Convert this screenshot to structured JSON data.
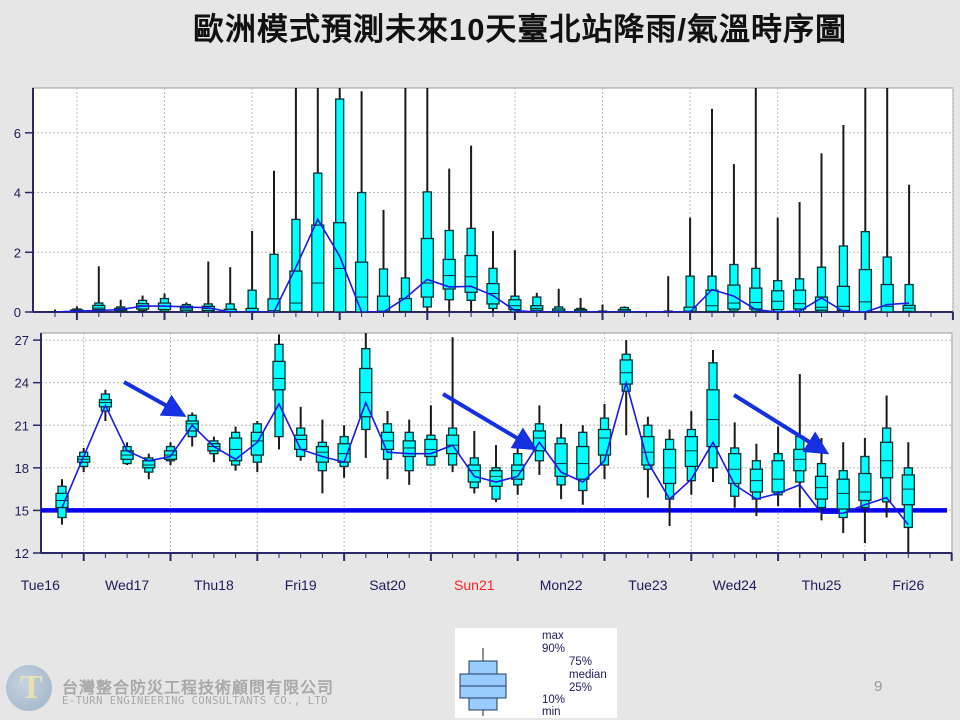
{
  "title": "歐洲模式預測未來10天臺北站降雨/氣溫時序圖",
  "page_number": "9",
  "company": {
    "name_zh": "台灣整合防災工程技術顧問有限公司",
    "name_en": "E-TURN ENGINEERING CONSULTANTS CO., LTD"
  },
  "legend": {
    "max": "max",
    "p90": "90%",
    "p75": "75%",
    "median": "median",
    "p25": "25%",
    "p10": "10%",
    "min": "min"
  },
  "colors": {
    "box_fill": "#00ffff",
    "box_border": "#0b3030",
    "control_line": "#1a1ae6",
    "reference_line": "#0000ee",
    "arrow": "#1530e0",
    "sunday_label": "#ff2020",
    "axis_text": "#1c1c5a",
    "legend_box": "#99ccff"
  },
  "chart_data": [
    {
      "type": "boxplot",
      "title": "",
      "xlabel": "",
      "ylabel": "",
      "ylim": [
        0,
        7.5
      ],
      "yticks": [
        "0",
        "2",
        "4",
        "6"
      ],
      "grid": true,
      "box_fields": [
        "min",
        "p10",
        "p25",
        "median",
        "p75",
        "p90",
        "max"
      ],
      "boxes": [
        [
          0,
          0,
          0,
          0,
          0,
          0,
          0.08
        ],
        [
          0,
          0,
          0,
          0.02,
          0.07,
          0.1,
          0.19
        ],
        [
          0,
          0.03,
          0.08,
          0.13,
          0.22,
          0.3,
          1.53
        ],
        [
          0,
          0.01,
          0.04,
          0.08,
          0.12,
          0.17,
          0.41
        ],
        [
          0,
          0.05,
          0.1,
          0.21,
          0.28,
          0.39,
          0.55
        ],
        [
          0,
          0.02,
          0.08,
          0.2,
          0.3,
          0.45,
          0.62
        ],
        [
          0,
          0,
          0.06,
          0.13,
          0.19,
          0.25,
          0.32
        ],
        [
          0,
          0,
          0.05,
          0.12,
          0.19,
          0.27,
          1.69
        ],
        [
          0,
          0,
          0,
          0.02,
          0.09,
          0.27,
          1.5
        ],
        [
          0,
          0,
          0,
          0.02,
          0.12,
          0.73,
          2.71
        ],
        [
          0,
          0,
          0,
          0.05,
          0.44,
          1.93,
          4.73
        ],
        [
          0,
          0,
          0.02,
          0.3,
          1.37,
          3.1,
          9
        ],
        [
          0,
          0,
          0,
          0.97,
          2.91,
          4.65,
          9
        ],
        [
          0,
          0,
          0,
          1.46,
          2.99,
          7.13,
          9
        ],
        [
          0,
          0,
          0,
          0.5,
          1.67,
          4.0,
          7.39
        ],
        [
          0,
          0,
          0,
          0.03,
          0.53,
          1.44,
          3.42
        ],
        [
          0,
          0,
          0,
          0.02,
          0.45,
          1.14,
          9
        ],
        [
          0,
          0.17,
          0.5,
          0.97,
          2.46,
          4.02,
          9
        ],
        [
          0,
          0.41,
          0.77,
          1.22,
          1.76,
          2.73,
          4.8
        ],
        [
          0,
          0.39,
          0.66,
          1.18,
          1.89,
          2.8,
          5.57
        ],
        [
          0,
          0.12,
          0.27,
          0.62,
          0.95,
          1.46,
          2.71
        ],
        [
          0,
          0,
          0.08,
          0.21,
          0.41,
          0.53,
          2.07
        ],
        [
          0,
          0,
          0.06,
          0.12,
          0.21,
          0.5,
          0.64
        ],
        [
          0,
          0,
          0,
          0.04,
          0.1,
          0.17,
          0.78
        ],
        [
          0,
          0,
          0,
          0.04,
          0.08,
          0.12,
          0.47
        ],
        [
          0,
          0,
          0,
          0,
          0,
          0.03,
          0.25
        ],
        [
          0,
          0,
          0,
          0.03,
          0.08,
          0.15,
          0.19
        ],
        [
          0,
          0,
          0,
          0,
          0,
          0,
          0.03
        ],
        [
          0,
          0,
          0,
          0,
          0,
          0.03,
          1.2
        ],
        [
          0,
          0,
          0,
          0.03,
          0.16,
          1.2,
          3.16
        ],
        [
          0,
          0,
          0.02,
          0.21,
          0.73,
          1.2,
          6.8
        ],
        [
          0,
          0.03,
          0.1,
          0.3,
          0.9,
          1.59,
          4.95
        ],
        [
          0,
          0.02,
          0.1,
          0.32,
          0.8,
          1.46,
          9
        ],
        [
          0,
          0,
          0.08,
          0.36,
          0.71,
          1.05,
          3.16
        ],
        [
          0,
          0,
          0.1,
          0.28,
          0.73,
          1.11,
          3.68
        ],
        [
          0,
          0,
          0.06,
          0.16,
          0.5,
          1.5,
          5.31
        ],
        [
          0,
          0,
          0.05,
          0.19,
          0.86,
          2.21,
          6.26
        ],
        [
          0,
          0,
          0,
          0.34,
          1.42,
          2.69,
          9
        ],
        [
          0,
          0,
          0,
          0.19,
          0.92,
          1.84,
          9
        ],
        [
          0,
          0,
          0.02,
          0.13,
          0.22,
          0.92,
          4.26
        ]
      ],
      "control_line": [
        0,
        0.03,
        0.05,
        0.08,
        0.2,
        0.2,
        0.17,
        0.14,
        0,
        0,
        0,
        1.5,
        3.1,
        1.87,
        0,
        0,
        0.47,
        1.09,
        0.84,
        0.86,
        0.55,
        0.05,
        0,
        0,
        0,
        0,
        0,
        0,
        0,
        0,
        0.75,
        0.53,
        0.08,
        0,
        0.03,
        0.47,
        0.02,
        0,
        0.25,
        0.3
      ]
    },
    {
      "type": "boxplot",
      "title": "",
      "xlabel": "",
      "ylabel": "",
      "ylim": [
        12,
        27.5
      ],
      "yticks": [
        "12",
        "15",
        "18",
        "21",
        "24",
        "27"
      ],
      "grid": true,
      "x_tick_labels": [
        "Tue16",
        "Wed17",
        "Thu18",
        "Fri19",
        "Sat20",
        "Sun21",
        "Mon22",
        "Tue23",
        "Wed24",
        "Thu25",
        "Fri26"
      ],
      "reference_line": 15,
      "box_fields": [
        "min",
        "p10",
        "p25",
        "median",
        "p75",
        "p90",
        "max"
      ],
      "boxes": [
        [
          14.0,
          14.5,
          15.2,
          15.7,
          16.2,
          16.7,
          17.2
        ],
        [
          17.7,
          18.1,
          18.4,
          18.6,
          18.8,
          19.1,
          19.4
        ],
        [
          21.3,
          22.0,
          22.3,
          22.6,
          22.8,
          23.2,
          23.5
        ],
        [
          18.2,
          18.3,
          18.6,
          18.9,
          19.2,
          19.5,
          19.8
        ],
        [
          17.2,
          17.7,
          18.0,
          18.2,
          18.5,
          18.7,
          19.0
        ],
        [
          18.2,
          18.5,
          18.6,
          18.9,
          19.2,
          19.5,
          19.8
        ],
        [
          19.5,
          20.2,
          20.6,
          21.1,
          21.3,
          21.7,
          21.9
        ],
        [
          18.4,
          19.0,
          19.2,
          19.5,
          19.7,
          19.9,
          20.2
        ],
        [
          17.8,
          18.2,
          18.5,
          19.3,
          20.1,
          20.5,
          20.9
        ],
        [
          17.7,
          18.4,
          18.9,
          19.9,
          20.5,
          21.1,
          21.3
        ],
        [
          19.3,
          20.2,
          23.5,
          24.3,
          25.5,
          26.7,
          27.4
        ],
        [
          18.5,
          18.8,
          19.3,
          20.0,
          20.3,
          20.8,
          22.3
        ],
        [
          16.2,
          17.8,
          18.4,
          19.1,
          19.5,
          19.8,
          21.4
        ],
        [
          17.3,
          18.1,
          18.4,
          19.0,
          19.7,
          20.2,
          21.0
        ],
        [
          18.7,
          20.7,
          21.6,
          23.3,
          25.0,
          26.4,
          27.5
        ],
        [
          17.2,
          18.6,
          19.3,
          19.9,
          20.5,
          21.1,
          22.0
        ],
        [
          16.8,
          17.8,
          18.8,
          19.4,
          19.9,
          20.5,
          21.4
        ],
        [
          18.2,
          18.2,
          18.8,
          19.3,
          20.0,
          20.3,
          22.4
        ],
        [
          17.7,
          18.2,
          19.0,
          19.6,
          20.3,
          20.8,
          27.2
        ],
        [
          16.2,
          16.6,
          17.0,
          17.8,
          18.2,
          18.7,
          20.6
        ],
        [
          15.6,
          15.8,
          16.7,
          17.4,
          17.8,
          18.0,
          19.6
        ],
        [
          16.1,
          16.8,
          17.2,
          17.8,
          18.2,
          19.0,
          19.8
        ],
        [
          17.5,
          18.5,
          19.2,
          20.1,
          20.6,
          21.1,
          22.4
        ],
        [
          15.8,
          16.8,
          17.4,
          18.3,
          19.7,
          20.1,
          21.1
        ],
        [
          15.4,
          16.4,
          17.2,
          18.3,
          19.5,
          20.5,
          21.0
        ],
        [
          17.2,
          18.2,
          18.9,
          20.1,
          20.7,
          21.5,
          22.5
        ],
        [
          20.3,
          23.4,
          23.9,
          24.7,
          25.6,
          26.0,
          27.0
        ],
        [
          15.9,
          17.9,
          18.2,
          19.1,
          20.2,
          21.0,
          21.6
        ],
        [
          13.9,
          15.8,
          16.9,
          18.0,
          19.3,
          20.0,
          20.7
        ],
        [
          16.1,
          17.1,
          18.1,
          19.2,
          20.2,
          20.7,
          22.0
        ],
        [
          17.0,
          18.0,
          19.5,
          21.4,
          23.5,
          25.4,
          26.3
        ],
        [
          15.2,
          16.0,
          16.9,
          17.9,
          19.0,
          19.4,
          21.2
        ],
        [
          14.6,
          15.8,
          16.3,
          17.1,
          17.9,
          18.5,
          19.7
        ],
        [
          15.3,
          16.1,
          16.3,
          17.2,
          18.5,
          19.0,
          20.9
        ],
        [
          15.2,
          17.0,
          17.8,
          18.6,
          19.3,
          20.2,
          24.6
        ],
        [
          14.3,
          15.2,
          15.8,
          16.6,
          17.4,
          18.3,
          20.1
        ],
        [
          13.4,
          14.5,
          15.1,
          16.2,
          17.2,
          17.8,
          19.8
        ],
        [
          12.7,
          15.2,
          15.7,
          16.3,
          17.6,
          18.8,
          20.1
        ],
        [
          14.5,
          15.6,
          17.3,
          18.5,
          19.8,
          20.8,
          23.1
        ],
        [
          11.9,
          13.8,
          15.4,
          16.5,
          17.5,
          18.0,
          19.8
        ]
      ],
      "control_line": [
        15.2,
        18.8,
        22.4,
        19.2,
        18.5,
        18.8,
        21.0,
        19.5,
        18.6,
        19.8,
        22.5,
        19.3,
        18.8,
        18.4,
        22.6,
        19.1,
        19.0,
        19.0,
        19.6,
        17.4,
        17.0,
        17.4,
        19.8,
        17.7,
        17.0,
        18.5,
        24.0,
        18.4,
        15.8,
        17.2,
        19.8,
        16.8,
        15.8,
        16.2,
        16.8,
        14.8,
        14.8,
        15.4,
        15.9,
        14.0
      ]
    }
  ]
}
